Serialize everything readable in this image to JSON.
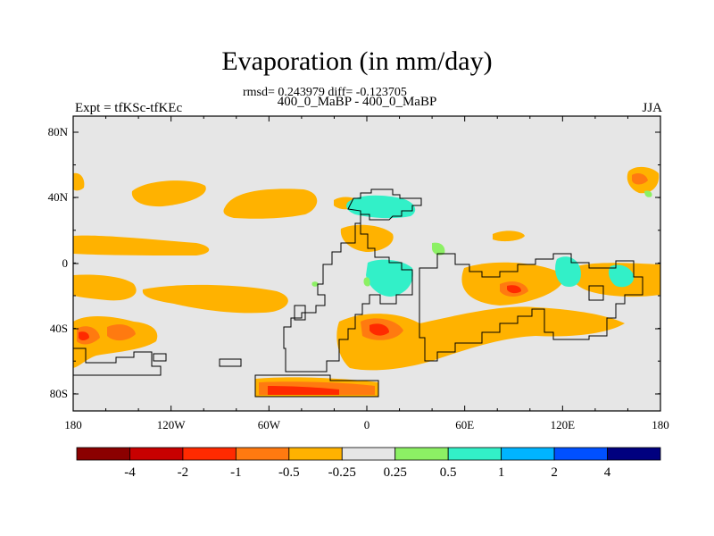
{
  "header": {
    "title": "Evaporation (in mm/day)",
    "stats": "rmsd= 0.243979 diff= -0.123705",
    "period": "400_0_MaBP - 400_0_MaBP",
    "experiment": "Expt = tfKSc-tfKEc",
    "season": "JJA"
  },
  "axes": {
    "lat_ticks": [
      "80N",
      "40N",
      "0",
      "40S",
      "80S"
    ],
    "lon_ticks": [
      "180",
      "120W",
      "60W",
      "0",
      "60E",
      "120E",
      "180"
    ]
  },
  "colorbar": {
    "colors": [
      "#8b0000",
      "#c80000",
      "#ff2a00",
      "#ff7a10",
      "#ffb200",
      "#e6e6e6",
      "#8cf064",
      "#32f0c8",
      "#00b4ff",
      "#0050ff",
      "#00007f"
    ],
    "labels": [
      "-4",
      "-2",
      "-1",
      "-0.5",
      "-0.25",
      "0.25",
      "0.5",
      "1",
      "2",
      "4"
    ]
  },
  "palette": {
    "background": "#e6e6e6",
    "negative_weak": "#ffb200",
    "negative_mid": "#ff7a10",
    "negative_strong": "#ff2a00",
    "positive_weak": "#8cf064",
    "positive_mid": "#32f0c8",
    "positive_strong": "#00b4ff"
  }
}
